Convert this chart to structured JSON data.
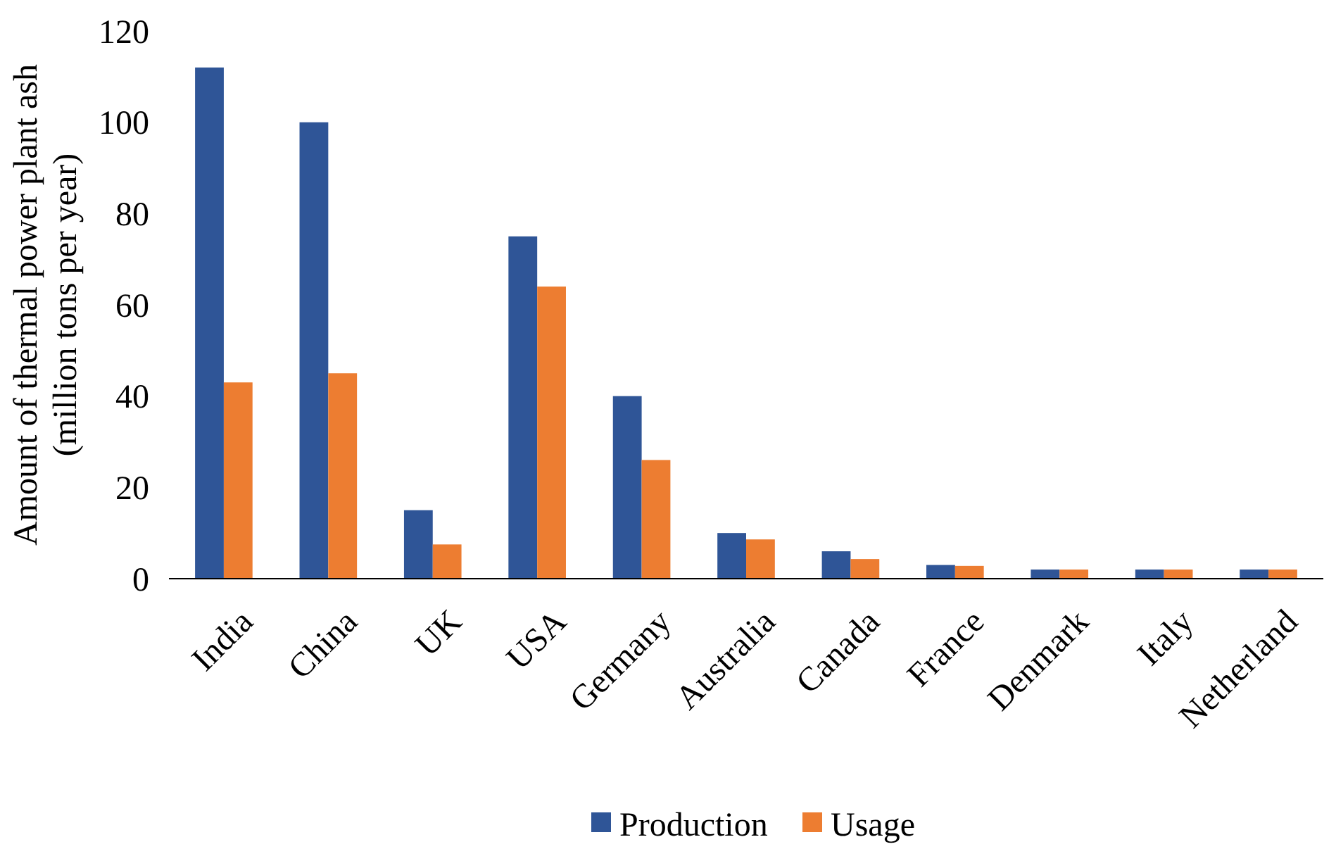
{
  "chart_data": {
    "type": "bar",
    "ylabel": "Amount of thermal power plant ash\n(million tons per year)",
    "categories": [
      "India",
      "China",
      "UK",
      "USA",
      "Germany",
      "Australia",
      "Canada",
      "France",
      "Denmark",
      "Italy",
      "Netherland"
    ],
    "series": [
      {
        "name": "Production",
        "color": "#2f5597",
        "values": [
          112,
          100,
          15,
          75,
          40,
          10,
          6,
          3,
          2,
          2,
          2
        ]
      },
      {
        "name": "Usage",
        "color": "#ed7d31",
        "values": [
          43,
          45,
          7.5,
          64,
          26,
          8.6,
          4.3,
          2.8,
          2,
          2,
          2
        ]
      }
    ],
    "ylim": [
      0,
      120
    ],
    "yticks": [
      0,
      20,
      40,
      60,
      80,
      100,
      120
    ],
    "grid": false,
    "legend": "bottom"
  }
}
